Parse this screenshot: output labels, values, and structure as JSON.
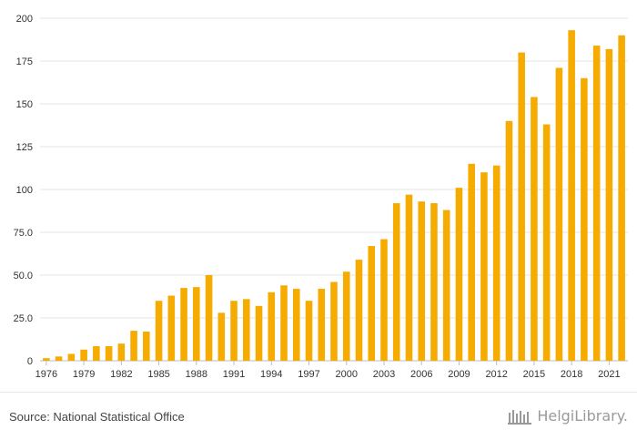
{
  "chart_data": {
    "type": "bar",
    "categories": [
      "1976",
      "1977",
      "1978",
      "1979",
      "1980",
      "1981",
      "1982",
      "1983",
      "1984",
      "1985",
      "1986",
      "1987",
      "1988",
      "1989",
      "1990",
      "1991",
      "1992",
      "1993",
      "1994",
      "1995",
      "1996",
      "1997",
      "1998",
      "1999",
      "2000",
      "2001",
      "2002",
      "2003",
      "2004",
      "2005",
      "2006",
      "2007",
      "2008",
      "2009",
      "2010",
      "2011",
      "2012",
      "2013",
      "2014",
      "2015",
      "2016",
      "2017",
      "2018",
      "2019",
      "2020",
      "2021",
      "2022"
    ],
    "values": [
      1.5,
      2.5,
      4,
      6.5,
      8.5,
      8.5,
      10,
      17.5,
      17,
      35,
      38,
      42.5,
      43,
      50,
      28,
      35,
      36,
      32,
      40,
      44,
      42,
      35,
      42,
      46,
      52,
      59,
      67,
      71,
      92,
      97,
      93,
      92,
      88,
      101,
      115,
      110,
      114,
      140,
      180,
      154,
      138,
      171,
      193,
      165,
      184,
      182,
      190
    ],
    "x_tick_labels": [
      "1976",
      "1979",
      "1982",
      "1985",
      "1988",
      "1991",
      "1994",
      "1997",
      "2000",
      "2003",
      "2006",
      "2009",
      "2012",
      "2015",
      "2018",
      "2021"
    ],
    "y_tick_labels": [
      "0",
      "25.0",
      "50.0",
      "75.0",
      "100",
      "125",
      "150",
      "175",
      "200"
    ],
    "y_ticks": [
      0,
      25,
      50,
      75,
      100,
      125,
      150,
      175,
      200
    ],
    "ylim": [
      0,
      200
    ],
    "title": "",
    "xlabel": "",
    "ylabel": "",
    "grid": true,
    "bar_color": "#f5ab00"
  },
  "footer": {
    "source": "Source: National Statistical Office",
    "brand": "HelgiLibrary."
  }
}
